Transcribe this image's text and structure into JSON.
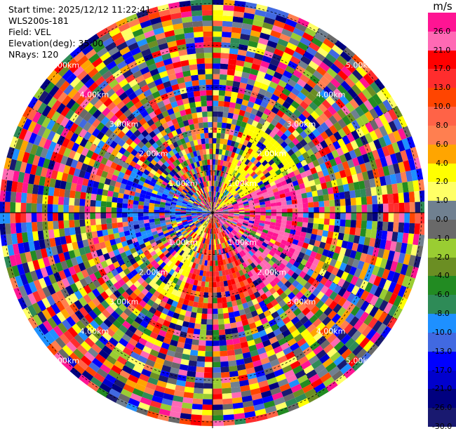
{
  "info": {
    "start_time": "Start time: 2025/12/12 11:22:41",
    "instrument": "WLS200s-181",
    "field": "Field: VEL",
    "elevation": "Elevation(deg): 35.00",
    "nrays": "NRays: 120"
  },
  "colorbar": {
    "unit": "m/s",
    "levels": [
      {
        "label": "26.0",
        "color": "#ff1493"
      },
      {
        "label": "21.0",
        "color": "#ff69b4"
      },
      {
        "label": "17.0",
        "color": "#ff0000"
      },
      {
        "label": "13.0",
        "color": "#ff2d2d"
      },
      {
        "label": "10.0",
        "color": "#ff4500"
      },
      {
        "label": "8.0",
        "color": "#ff6347"
      },
      {
        "label": "6.0",
        "color": "#ff7f50"
      },
      {
        "label": "4.0",
        "color": "#ffa500"
      },
      {
        "label": "2.0",
        "color": "#ffff00"
      },
      {
        "label": "1.0",
        "color": "#ffff66"
      },
      {
        "label": "0.0",
        "color": "#708090"
      },
      {
        "label": "-1.0",
        "color": "#696969"
      },
      {
        "label": "-2.0",
        "color": "#9acd32"
      },
      {
        "label": "-4.0",
        "color": "#6b8e23"
      },
      {
        "label": "-6.0",
        "color": "#228b22"
      },
      {
        "label": "-8.0",
        "color": "#2e8b57"
      },
      {
        "label": "-10.0",
        "color": "#1e90ff"
      },
      {
        "label": "-13.0",
        "color": "#4169e1"
      },
      {
        "label": "-17.0",
        "color": "#0000ff"
      },
      {
        "label": "-21.0",
        "color": "#0000cd"
      },
      {
        "label": "-26.0",
        "color": "#000080"
      },
      {
        "label": "-30.0",
        "color": "#191970"
      }
    ]
  },
  "chart_data": {
    "type": "heatmap",
    "projection": "polar",
    "field": "VEL",
    "range_ring_labels": [
      "1.00km",
      "2.00km",
      "3.00km",
      "4.00km",
      "5.00km"
    ],
    "range_rings_km": [
      1,
      2,
      3,
      4,
      5
    ],
    "max_range_km": 5,
    "nrays": 120,
    "grid": true
  }
}
